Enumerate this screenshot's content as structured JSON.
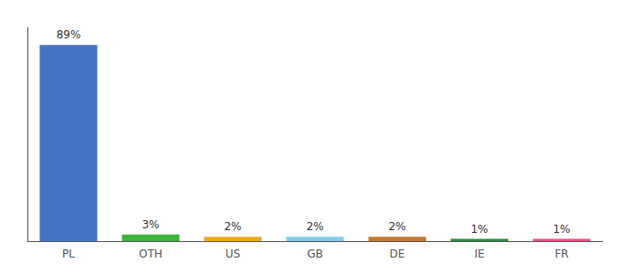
{
  "chart_data": {
    "type": "bar",
    "categories": [
      "PL",
      "OTH",
      "US",
      "GB",
      "DE",
      "IE",
      "FR"
    ],
    "values": [
      89,
      3,
      2,
      2,
      2,
      1,
      1
    ],
    "value_labels": [
      "89%",
      "3%",
      "2%",
      "2%",
      "2%",
      "1%",
      "1%"
    ],
    "colors": [
      "#4472c4",
      "#3cb43c",
      "#f0a820",
      "#85cce8",
      "#c47830",
      "#2e8b3c",
      "#e8508a"
    ],
    "ylim": [
      0,
      97
    ],
    "data_labels": true,
    "tick_labels": "x",
    "grid": false
  }
}
